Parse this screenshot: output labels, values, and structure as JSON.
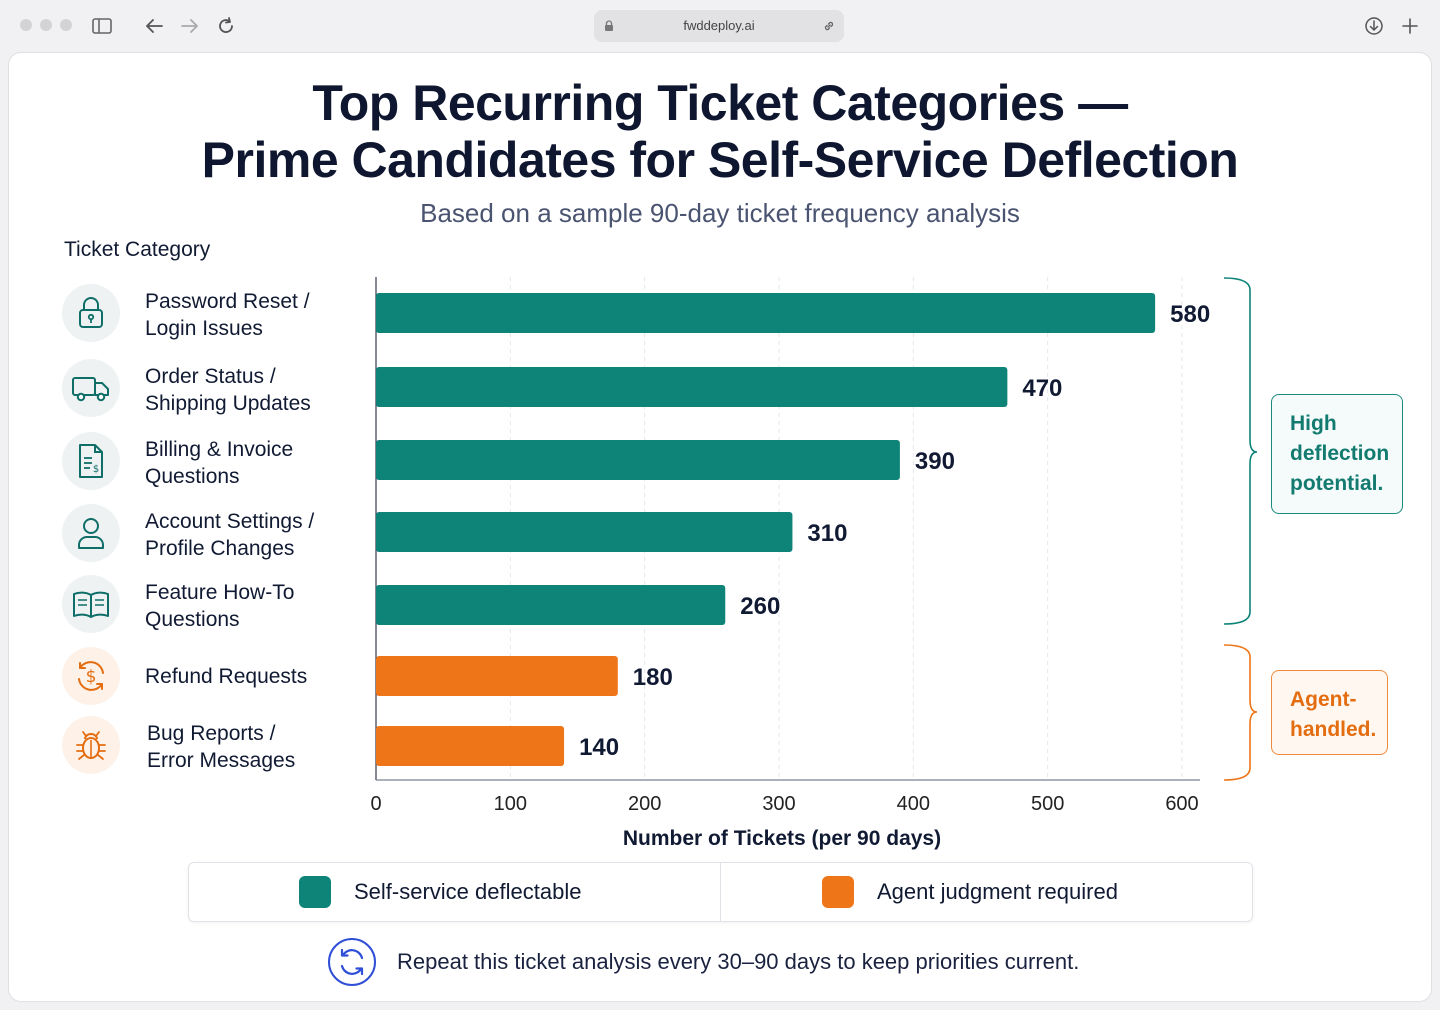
{
  "browser": {
    "url": "fwddeploy.ai"
  },
  "page": {
    "title_line1": "Top Recurring Ticket Categories —",
    "title_line2": "Prime Candidates for Self-Service Deflection",
    "subtitle": "Based on a sample 90-day ticket frequency analysis",
    "category_header": "Ticket Category",
    "categories": [
      {
        "label": "Password Reset /\nLogin Issues",
        "icon": "lock-icon",
        "group": "teal"
      },
      {
        "label": "Order Status /\nShipping Updates",
        "icon": "truck-icon",
        "group": "teal"
      },
      {
        "label": "Billing & Invoice\nQuestions",
        "icon": "invoice-icon",
        "group": "teal"
      },
      {
        "label": "Account Settings /\nProfile Changes",
        "icon": "user-icon",
        "group": "teal"
      },
      {
        "label": "Feature How-To\nQuestions",
        "icon": "book-icon",
        "group": "teal"
      },
      {
        "label": "Refund Requests",
        "icon": "dollar-icon",
        "group": "orange"
      },
      {
        "label": "Bug Reports /\nError Messages",
        "icon": "bug-icon",
        "group": "orange"
      }
    ],
    "callout_high": "High deflection potential.",
    "callout_agent": "Agent-handled.",
    "legend": {
      "self_service": "Self-service deflectable",
      "agent": "Agent judgment required"
    },
    "footer": "Repeat this ticket analysis every 30–90 days to keep priorities current.",
    "colors": {
      "teal": "#0e8479",
      "orange": "#ee7518",
      "title": "#0f1730"
    }
  },
  "chart_data": {
    "type": "bar",
    "orientation": "horizontal",
    "categories": [
      "Password Reset / Login Issues",
      "Order Status / Shipping Updates",
      "Billing & Invoice Questions",
      "Account Settings / Profile Changes",
      "Feature How-To Questions",
      "Refund Requests",
      "Bug Reports / Error Messages"
    ],
    "values": [
      580,
      470,
      390,
      310,
      260,
      180,
      140
    ],
    "groups": [
      "teal",
      "teal",
      "teal",
      "teal",
      "teal",
      "orange",
      "orange"
    ],
    "xlabel": "Number of Tickets (per 90 days)",
    "xlim": [
      0,
      600
    ],
    "xticks": [
      0,
      100,
      200,
      300,
      400,
      500,
      600
    ],
    "grid": "vertical-dashed",
    "legend_placement": "bottom"
  }
}
